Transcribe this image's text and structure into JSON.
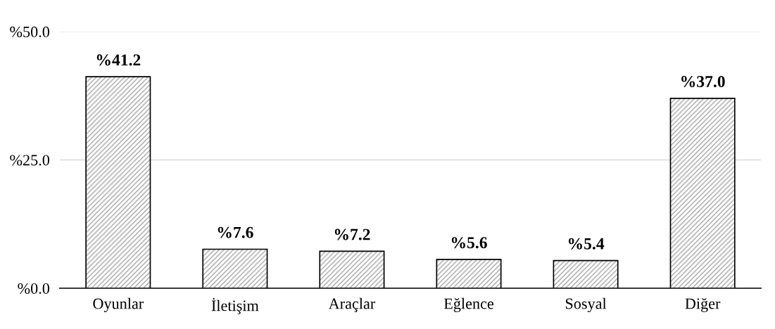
{
  "chart_data": {
    "type": "bar",
    "categories": [
      "Oyunlar",
      "İletişim",
      "Araçlar",
      "Eğlence",
      "Sosyal",
      "Diğer"
    ],
    "values": [
      41.2,
      7.6,
      7.2,
      5.6,
      5.4,
      37.0
    ],
    "value_labels": [
      "%41.2",
      "%7.6",
      "%7.2",
      "%5.6",
      "%5.4",
      "%37.0"
    ],
    "color": "#000000",
    "ylim": [
      0,
      50
    ],
    "yticks": [
      {
        "value": 0,
        "label": "%0.0"
      },
      {
        "value": 25,
        "label": "%25.0"
      },
      {
        "value": 50,
        "label": "%50.0"
      }
    ],
    "grid": "y",
    "legend": false
  }
}
